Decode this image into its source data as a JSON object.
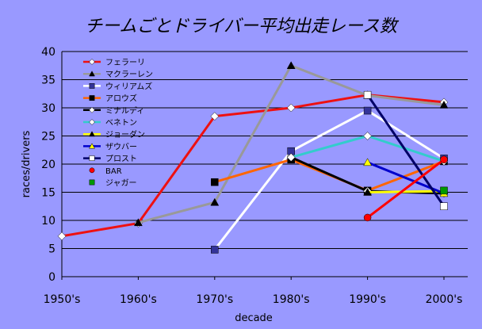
{
  "chart_data": {
    "type": "line",
    "title": "チームごとドライバー平均出走レース数",
    "xlabel": "decade",
    "ylabel": "races/drivers",
    "categories": [
      "1950's",
      "1960's",
      "1970's",
      "1980's",
      "1990's",
      "2000's"
    ],
    "ylim": [
      0,
      40
    ],
    "yticks": [
      0,
      5,
      10,
      15,
      20,
      25,
      30,
      35,
      40
    ],
    "grid": true,
    "legend_position": "top-left",
    "series": [
      {
        "name": "フェラーリ",
        "color": "#ee1111",
        "marker": "diamond",
        "marker_color": "#ffffff",
        "values": [
          7.2,
          9.5,
          28.5,
          30,
          32.3,
          31
        ]
      },
      {
        "name": "マクラーレン",
        "color": "#999999",
        "marker": "triangle",
        "marker_color": "#000000",
        "values": [
          null,
          9.6,
          13.2,
          37.5,
          32.2,
          30.5
        ]
      },
      {
        "name": "ウィリアムズ",
        "color": "#ffffff",
        "marker": "square",
        "marker_color": "#333399",
        "values": [
          null,
          null,
          4.8,
          22.3,
          29.5,
          21
        ]
      },
      {
        "name": "アロウズ",
        "color": "#ff6600",
        "marker": "square",
        "marker_color": "#000000",
        "values": [
          null,
          null,
          16.8,
          20.8,
          15.3,
          20.5
        ]
      },
      {
        "name": "ミナルディ",
        "color": "#000000",
        "marker": "diamond",
        "marker_color": "#ffffff",
        "values": [
          null,
          null,
          null,
          21.2,
          15.2,
          14.8
        ]
      },
      {
        "name": "ベネトン",
        "color": "#33cccc",
        "marker": "diamond",
        "marker_color": "#ffffff",
        "values": [
          null,
          null,
          null,
          21.2,
          25,
          20.5
        ]
      },
      {
        "name": "ジョーダン",
        "color": "#ffff00",
        "marker": "triangle",
        "marker_color": "#000000",
        "values": [
          null,
          null,
          null,
          null,
          15,
          15.2
        ]
      },
      {
        "name": "ザウバー",
        "color": "#0000cc",
        "marker": "triangle",
        "marker_color": "#ffff00",
        "values": [
          null,
          null,
          null,
          null,
          20.3,
          14.8
        ]
      },
      {
        "name": "プロスト",
        "color": "#000066",
        "marker": "square",
        "marker_color": "#ffffff",
        "values": [
          null,
          null,
          null,
          null,
          32.3,
          12.5
        ]
      },
      {
        "name": "BAR",
        "color": "#ff0000",
        "marker": "circle",
        "marker_color": "#ff0000",
        "values": [
          null,
          null,
          null,
          null,
          10.5,
          20.8
        ]
      },
      {
        "name": "ジャガー",
        "color": "#009900",
        "marker": "square",
        "marker_color": "#009900",
        "values": [
          null,
          null,
          null,
          null,
          null,
          15.3
        ]
      }
    ]
  },
  "colors": {
    "background": "#9999ff",
    "plot_background": "#9999ff",
    "gridline": "#000000"
  }
}
